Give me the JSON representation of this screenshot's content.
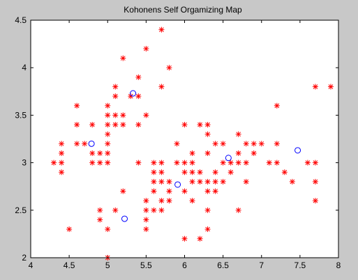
{
  "chart_data": {
    "type": "scatter",
    "title": "Kohonens Self Orgamizing Map",
    "xlabel": "",
    "ylabel": "",
    "xlim": [
      4,
      8
    ],
    "ylim": [
      2,
      4.5
    ],
    "grid": false,
    "x_ticks": [
      "4",
      "4.5",
      "5",
      "5.5",
      "6",
      "6.5",
      "7",
      "7.5",
      "8"
    ],
    "y_ticks": [
      "2",
      "2.5",
      "3",
      "3.5",
      "4",
      "4.5"
    ],
    "series": [
      {
        "marker": "asterisk",
        "color": "#ff0000",
        "points": [
          [
            5.7,
            4.4
          ],
          [
            5.2,
            4.1
          ],
          [
            5.5,
            4.2
          ],
          [
            5.8,
            4.0
          ],
          [
            5.4,
            3.9
          ],
          [
            5.7,
            3.8
          ],
          [
            7.7,
            3.8
          ],
          [
            7.9,
            3.8
          ],
          [
            5.1,
            3.8
          ],
          [
            5.4,
            3.7
          ],
          [
            5.1,
            3.7
          ],
          [
            5.3,
            3.7
          ],
          [
            4.6,
            3.6
          ],
          [
            5.0,
            3.6
          ],
          [
            7.2,
            3.6
          ],
          [
            5.0,
            3.5
          ],
          [
            5.1,
            3.5
          ],
          [
            5.2,
            3.5
          ],
          [
            5.5,
            3.5
          ],
          [
            4.6,
            3.4
          ],
          [
            4.8,
            3.4
          ],
          [
            5.0,
            3.4
          ],
          [
            5.1,
            3.4
          ],
          [
            5.2,
            3.4
          ],
          [
            5.4,
            3.4
          ],
          [
            6.0,
            3.4
          ],
          [
            6.2,
            3.4
          ],
          [
            6.3,
            3.4
          ],
          [
            5.0,
            3.3
          ],
          [
            6.3,
            3.3
          ],
          [
            6.7,
            3.3
          ],
          [
            4.4,
            3.2
          ],
          [
            4.6,
            3.2
          ],
          [
            4.7,
            3.2
          ],
          [
            5.0,
            3.2
          ],
          [
            5.9,
            3.2
          ],
          [
            6.4,
            3.2
          ],
          [
            6.5,
            3.2
          ],
          [
            6.8,
            3.2
          ],
          [
            6.9,
            3.2
          ],
          [
            7.0,
            3.2
          ],
          [
            7.2,
            3.2
          ],
          [
            4.4,
            3.1
          ],
          [
            4.8,
            3.1
          ],
          [
            4.9,
            3.1
          ],
          [
            5.0,
            3.1
          ],
          [
            6.1,
            3.1
          ],
          [
            6.3,
            3.1
          ],
          [
            6.7,
            3.1
          ],
          [
            6.9,
            3.1
          ],
          [
            4.3,
            3.0
          ],
          [
            4.4,
            3.0
          ],
          [
            4.8,
            3.0
          ],
          [
            4.9,
            3.0
          ],
          [
            5.0,
            3.0
          ],
          [
            5.4,
            3.0
          ],
          [
            5.6,
            3.0
          ],
          [
            5.7,
            3.0
          ],
          [
            5.9,
            3.0
          ],
          [
            6.0,
            3.0
          ],
          [
            6.1,
            3.0
          ],
          [
            6.5,
            3.0
          ],
          [
            6.6,
            3.0
          ],
          [
            6.7,
            3.0
          ],
          [
            6.8,
            3.0
          ],
          [
            7.1,
            3.0
          ],
          [
            7.2,
            3.0
          ],
          [
            7.6,
            3.0
          ],
          [
            7.7,
            3.0
          ],
          [
            4.4,
            2.9
          ],
          [
            5.6,
            2.9
          ],
          [
            5.7,
            2.9
          ],
          [
            6.0,
            2.9
          ],
          [
            6.1,
            2.9
          ],
          [
            6.2,
            2.9
          ],
          [
            6.4,
            2.9
          ],
          [
            6.6,
            2.9
          ],
          [
            7.3,
            2.9
          ],
          [
            5.6,
            2.8
          ],
          [
            5.7,
            2.8
          ],
          [
            5.8,
            2.8
          ],
          [
            6.1,
            2.8
          ],
          [
            6.2,
            2.8
          ],
          [
            6.3,
            2.8
          ],
          [
            6.4,
            2.8
          ],
          [
            6.5,
            2.8
          ],
          [
            6.8,
            2.8
          ],
          [
            7.4,
            2.8
          ],
          [
            7.7,
            2.8
          ],
          [
            5.2,
            2.7
          ],
          [
            5.6,
            2.7
          ],
          [
            5.8,
            2.7
          ],
          [
            6.0,
            2.7
          ],
          [
            6.3,
            2.7
          ],
          [
            6.4,
            2.7
          ],
          [
            5.5,
            2.6
          ],
          [
            5.7,
            2.6
          ],
          [
            5.8,
            2.6
          ],
          [
            6.1,
            2.6
          ],
          [
            7.7,
            2.6
          ],
          [
            4.9,
            2.5
          ],
          [
            5.1,
            2.5
          ],
          [
            5.5,
            2.5
          ],
          [
            5.6,
            2.5
          ],
          [
            5.7,
            2.5
          ],
          [
            6.3,
            2.5
          ],
          [
            6.7,
            2.5
          ],
          [
            4.9,
            2.4
          ],
          [
            5.5,
            2.4
          ],
          [
            4.5,
            2.3
          ],
          [
            5.0,
            2.3
          ],
          [
            5.5,
            2.3
          ],
          [
            6.3,
            2.3
          ],
          [
            6.0,
            2.2
          ],
          [
            6.2,
            2.2
          ],
          [
            5.0,
            2.0
          ]
        ]
      },
      {
        "marker": "circle",
        "color": "#0000ff",
        "points": [
          [
            5.33,
            3.73
          ],
          [
            4.79,
            3.2
          ],
          [
            6.57,
            3.05
          ],
          [
            7.47,
            3.13
          ],
          [
            5.91,
            2.77
          ],
          [
            5.22,
            2.41
          ]
        ]
      }
    ]
  }
}
